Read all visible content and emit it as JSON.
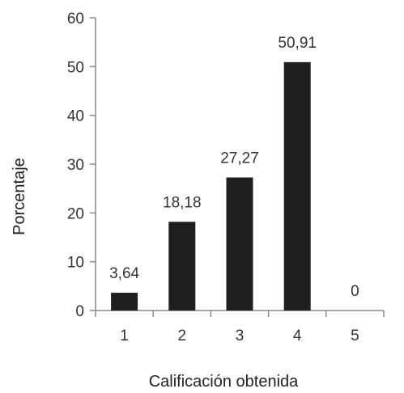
{
  "chart_data": {
    "type": "bar",
    "categories": [
      "1",
      "2",
      "3",
      "4",
      "5"
    ],
    "values": [
      3.64,
      18.18,
      27.27,
      50.91,
      0
    ],
    "data_labels": [
      "3,64",
      "18,18",
      "27,27",
      "50,91",
      "0"
    ],
    "title": "",
    "xlabel": "Calificación obtenida",
    "ylabel": "Porcentaje",
    "ylim": [
      0,
      60
    ],
    "yticks": [
      0,
      10,
      20,
      30,
      40,
      50,
      60
    ],
    "grid": false,
    "legend": "none",
    "bar_color": "#1e1e1e"
  }
}
